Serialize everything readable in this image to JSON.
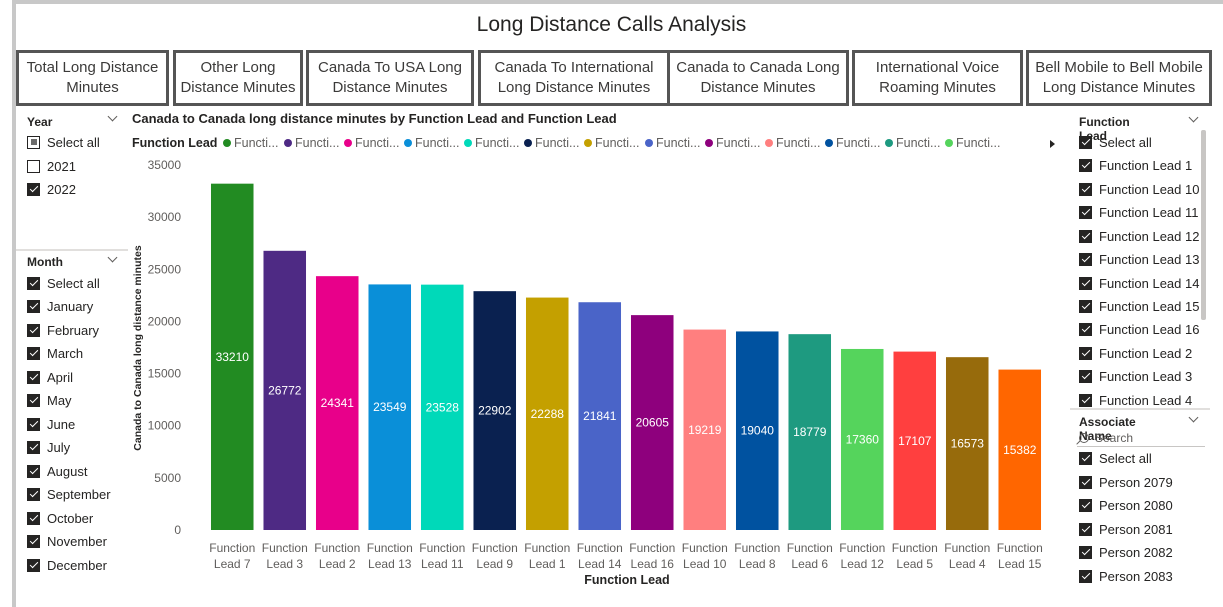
{
  "report_title": "Long Distance Calls Analysis",
  "cards": [
    {
      "label": "Total Long Distance Minutes",
      "lines": [
        "Total Long Distance",
        "Minutes"
      ]
    },
    {
      "label": "Other Long Distance Minutes",
      "lines": [
        "Other Long",
        "Distance Minutes"
      ]
    },
    {
      "label": "Canada To USA Long Distance Minutes",
      "lines": [
        "Canada To USA Long",
        "Distance Minutes"
      ]
    },
    {
      "label": "Canada To International Long Distance Minutes",
      "lines": [
        "Canada To International",
        "Long Distance Minutes"
      ]
    },
    {
      "label": "Canada to Canada Long Distance Minutes",
      "lines": [
        "Canada to Canada Long",
        "Distance Minutes"
      ]
    },
    {
      "label": "International Voice Roaming Minutes",
      "lines": [
        "International Voice",
        "Roaming Minutes"
      ]
    },
    {
      "label": "Bell Mobile to Bell Mobile Long Distance Minutes",
      "lines": [
        "Bell Mobile to Bell Mobile",
        "Long Distance Minutes"
      ]
    }
  ],
  "year_slicer": {
    "title": "Year",
    "items": [
      {
        "label": "Select all",
        "state": "partial"
      },
      {
        "label": "2021",
        "state": "unchecked"
      },
      {
        "label": "2022",
        "state": "checked"
      }
    ]
  },
  "month_slicer": {
    "title": "Month",
    "items": [
      {
        "label": "Select all",
        "state": "checked"
      },
      {
        "label": "January",
        "state": "checked"
      },
      {
        "label": "February",
        "state": "checked"
      },
      {
        "label": "March",
        "state": "checked"
      },
      {
        "label": "April",
        "state": "checked"
      },
      {
        "label": "May",
        "state": "checked"
      },
      {
        "label": "June",
        "state": "checked"
      },
      {
        "label": "July",
        "state": "checked"
      },
      {
        "label": "August",
        "state": "checked"
      },
      {
        "label": "September",
        "state": "checked"
      },
      {
        "label": "October",
        "state": "checked"
      },
      {
        "label": "November",
        "state": "checked"
      },
      {
        "label": "December",
        "state": "checked"
      }
    ]
  },
  "function_lead_slicer": {
    "title": "Function Lead",
    "items": [
      {
        "label": "Select all",
        "state": "checked"
      },
      {
        "label": "Function Lead 1",
        "state": "checked"
      },
      {
        "label": "Function Lead 10",
        "state": "checked"
      },
      {
        "label": "Function Lead 11",
        "state": "checked"
      },
      {
        "label": "Function Lead 12",
        "state": "checked"
      },
      {
        "label": "Function Lead 13",
        "state": "checked"
      },
      {
        "label": "Function Lead 14",
        "state": "checked"
      },
      {
        "label": "Function Lead 15",
        "state": "checked"
      },
      {
        "label": "Function Lead 16",
        "state": "checked"
      },
      {
        "label": "Function Lead 2",
        "state": "checked"
      },
      {
        "label": "Function Lead 3",
        "state": "checked"
      },
      {
        "label": "Function Lead 4",
        "state": "checked"
      }
    ]
  },
  "associate_slicer": {
    "title": "Associate Name",
    "search_placeholder": "Search",
    "items": [
      {
        "label": "Select all",
        "state": "checked"
      },
      {
        "label": "Person 2079",
        "state": "checked"
      },
      {
        "label": "Person 2080",
        "state": "checked"
      },
      {
        "label": "Person 2081",
        "state": "checked"
      },
      {
        "label": "Person 2082",
        "state": "checked"
      },
      {
        "label": "Person 2083",
        "state": "checked"
      }
    ]
  },
  "legend": {
    "title": "Function Lead",
    "item_label": "Functi...",
    "colors": [
      "#228B22",
      "#4E2A84",
      "#E8008A",
      "#0A8FD8",
      "#00D9B9",
      "#0A2150",
      "#C4A000",
      "#4A64C8",
      "#8E007D",
      "#FF7F7F",
      "#0052A0",
      "#1E9A80",
      "#55D45C"
    ]
  },
  "chart_data": {
    "type": "bar",
    "title": "Canada to Canada long distance minutes by Function Lead and Function Lead",
    "xlabel": "Function Lead",
    "ylabel": "Canada to Canada long distance minutes",
    "ylim": [
      0,
      35000
    ],
    "yticks": [
      0,
      5000,
      10000,
      15000,
      20000,
      25000,
      30000,
      35000
    ],
    "grid": false,
    "legend_position": "top",
    "categories": [
      [
        "Function",
        "Lead 7"
      ],
      [
        "Function",
        "Lead 3"
      ],
      [
        "Function",
        "Lead 2"
      ],
      [
        "Function",
        "Lead 13"
      ],
      [
        "Function",
        "Lead 11"
      ],
      [
        "Function",
        "Lead 9"
      ],
      [
        "Function",
        "Lead 1"
      ],
      [
        "Function",
        "Lead 14"
      ],
      [
        "Function",
        "Lead 16"
      ],
      [
        "Function",
        "Lead 10"
      ],
      [
        "Function",
        "Lead 8"
      ],
      [
        "Function",
        "Lead 6"
      ],
      [
        "Function",
        "Lead 12"
      ],
      [
        "Function",
        "Lead 5"
      ],
      [
        "Function",
        "Lead 4"
      ],
      [
        "Function",
        "Lead 15"
      ]
    ],
    "values": [
      33210,
      26772,
      24341,
      23549,
      23528,
      22902,
      22288,
      21841,
      20605,
      19219,
      19040,
      18779,
      17360,
      17107,
      16573,
      15382
    ],
    "colors": [
      "#228B22",
      "#4E2A84",
      "#E8008A",
      "#0A8FD8",
      "#00D9B9",
      "#0A2150",
      "#C4A000",
      "#4A64C8",
      "#8E007D",
      "#FF7F7F",
      "#0052A0",
      "#1E9A80",
      "#55D45C",
      "#FF3F3F",
      "#976B0C",
      "#FF6600"
    ]
  }
}
